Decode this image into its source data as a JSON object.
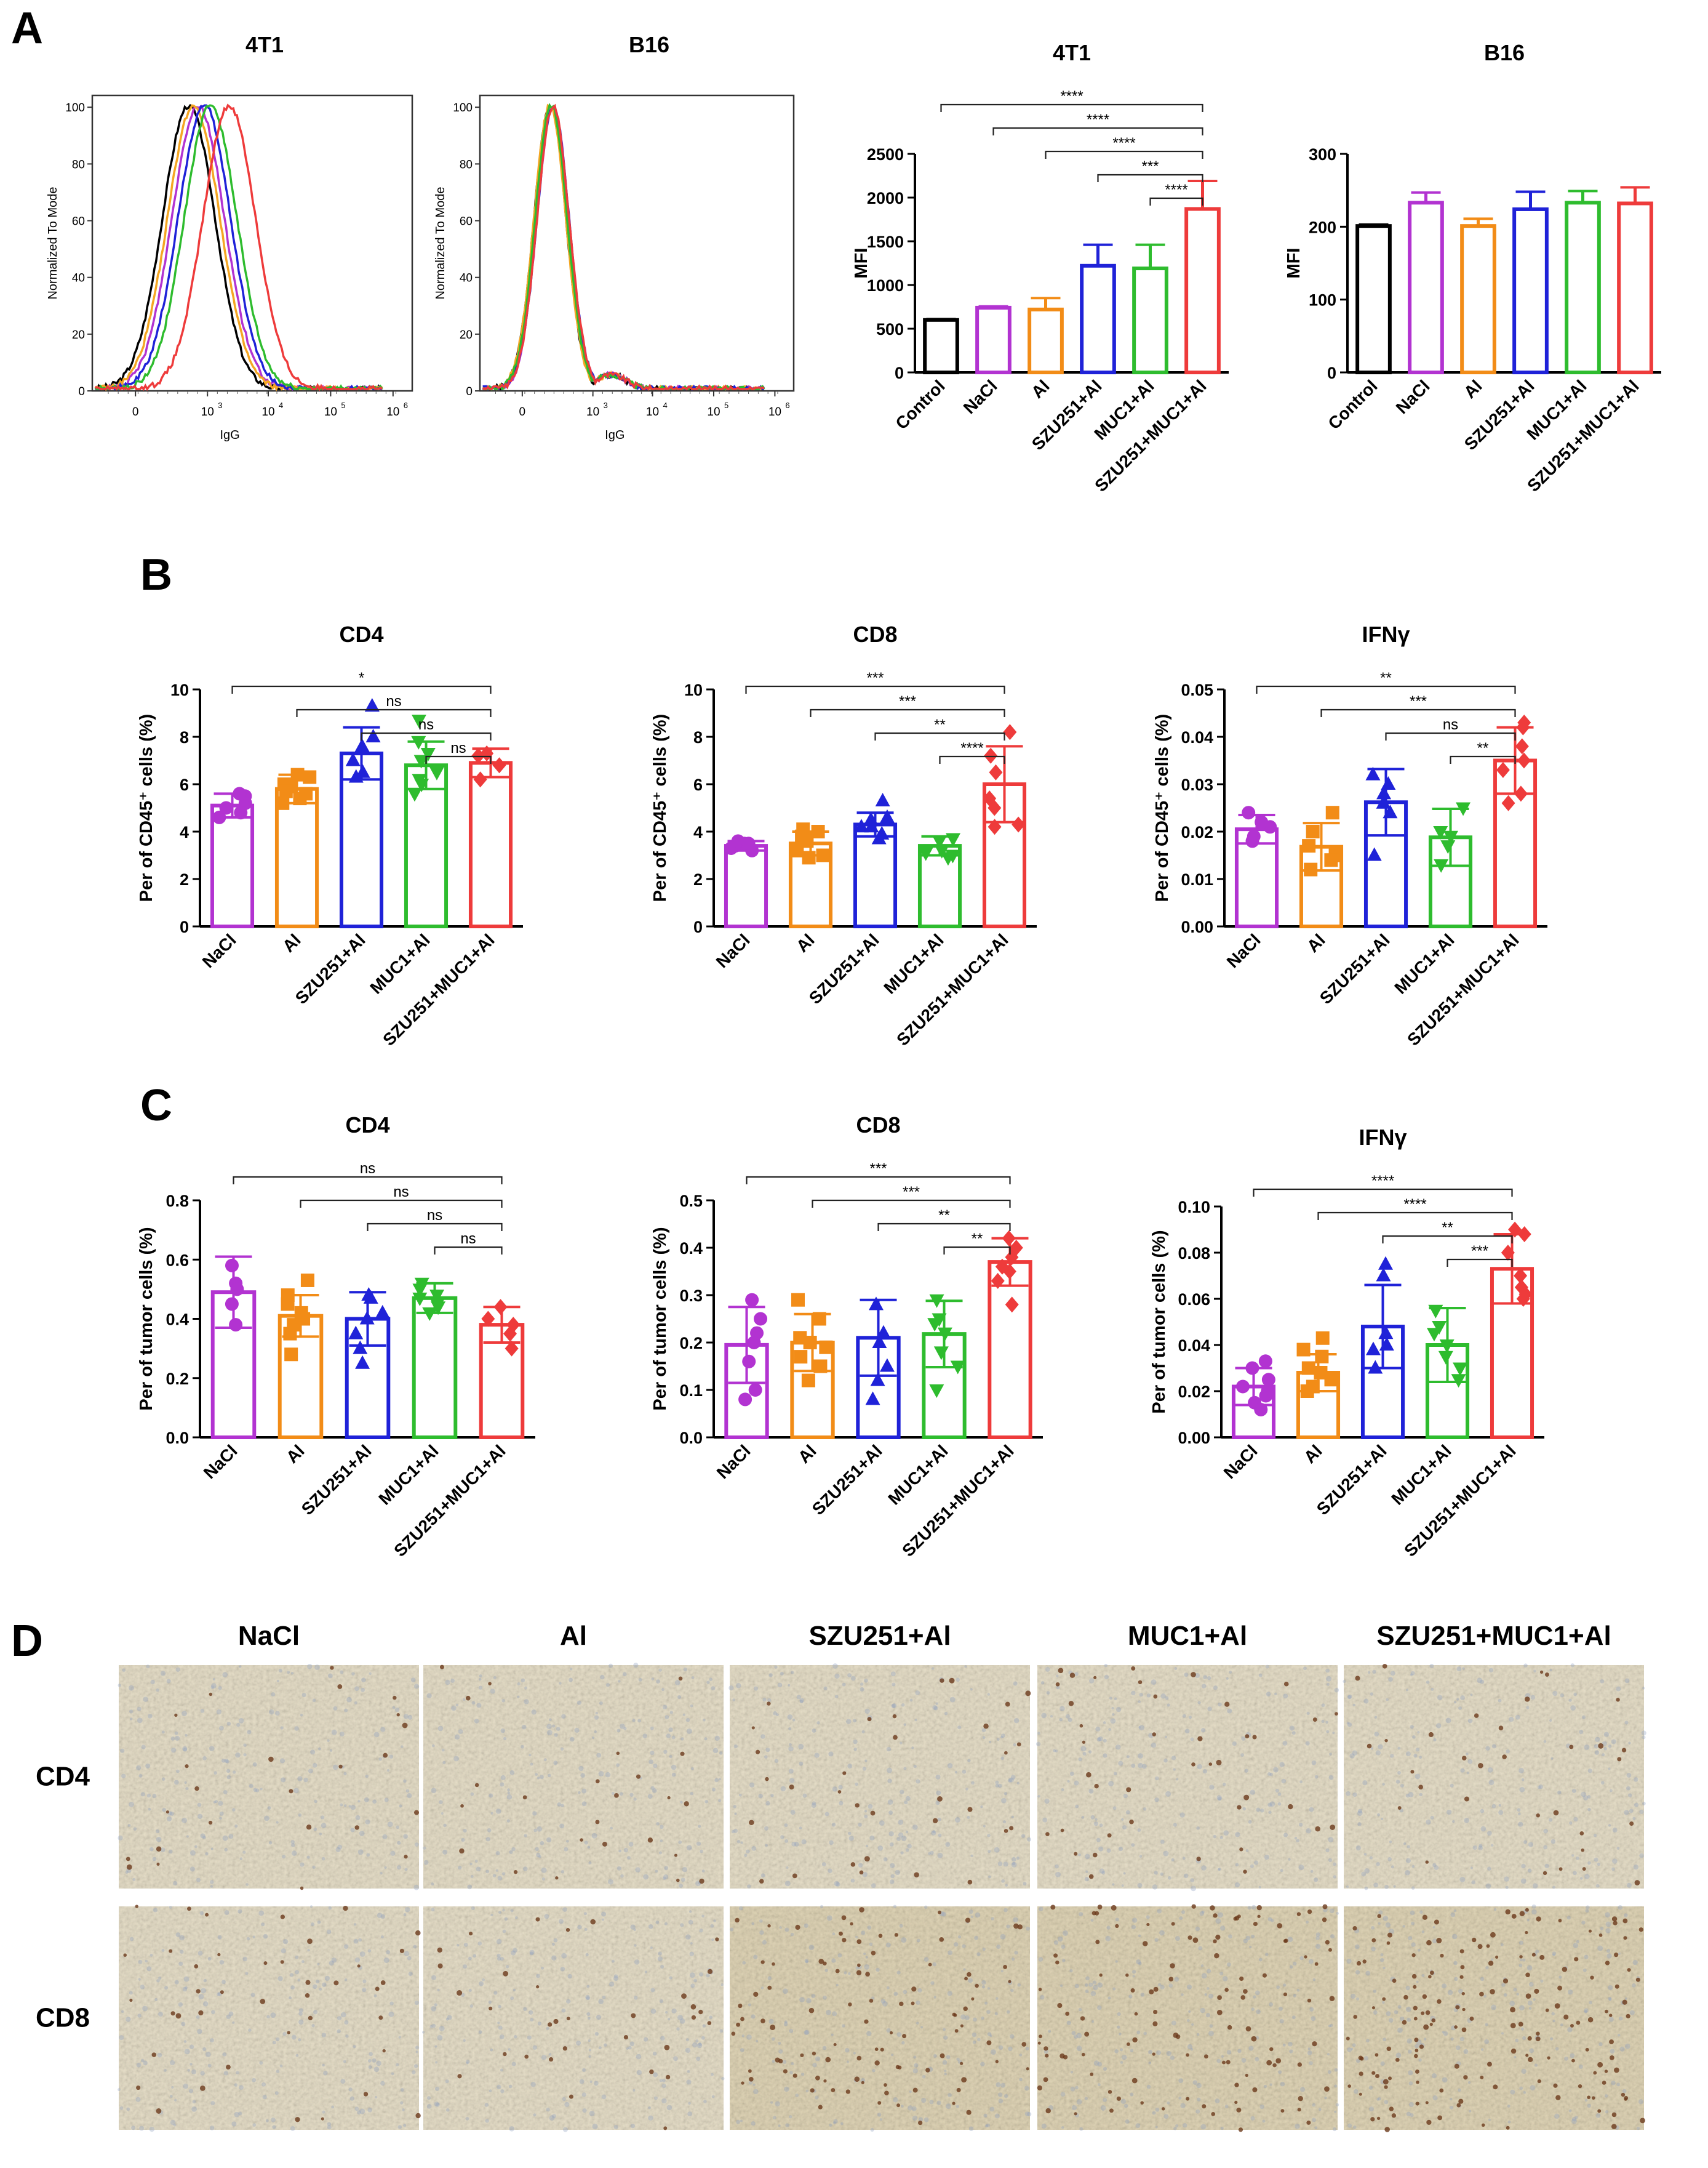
{
  "groups": {
    "control": "Control",
    "nacl": "NaCl",
    "al": "Al",
    "szu": "SZU251+Al",
    "muc": "MUC1+Al",
    "combo": "SZU251+MUC1+Al"
  },
  "colors": {
    "control": "#000000",
    "nacl": "#b233d1",
    "al": "#f28c17",
    "szu": "#1f22d8",
    "muc": "#2ebc2e",
    "combo": "#ee3b3b",
    "flow_orange": "#f5a623"
  },
  "panel_letters": [
    "A",
    "B",
    "C",
    "D"
  ],
  "chart_data": [
    {
      "id": "A-hist-4T1",
      "type": "line",
      "title": "4T1",
      "xlabel": "IgG",
      "ylabel": "Normalized To Mode",
      "x_scale": "biexponential",
      "x_ticks": [
        "0",
        "10",
        "10",
        "10",
        "10"
      ],
      "x_tick_exponents": [
        "",
        "3",
        "4",
        "5",
        "6"
      ],
      "y_ticks": [
        "0",
        "20",
        "40",
        "60",
        "80",
        "100"
      ],
      "ylim": [
        0,
        100
      ],
      "series": [
        {
          "name": "Control",
          "color_key": "control",
          "peak_log10": 2.7
        },
        {
          "name": "NaCl",
          "color_key": "nacl",
          "peak_log10": 2.85
        },
        {
          "name": "Al",
          "color_key": "flow_orange",
          "peak_log10": 2.78
        },
        {
          "name": "SZU251+Al",
          "color_key": "szu",
          "peak_log10": 2.95
        },
        {
          "name": "MUC1+Al",
          "color_key": "muc",
          "peak_log10": 3.05
        },
        {
          "name": "SZU251+MUC1+Al",
          "color_key": "combo",
          "peak_log10": 3.35
        }
      ]
    },
    {
      "id": "A-hist-B16",
      "type": "line",
      "title": "B16",
      "xlabel": "IgG",
      "ylabel": "Normalized To Mode",
      "x_scale": "biexponential",
      "x_ticks": [
        "0",
        "10",
        "10",
        "10",
        "10"
      ],
      "x_tick_exponents": [
        "",
        "3",
        "4",
        "5",
        "6"
      ],
      "y_ticks": [
        "0",
        "20",
        "40",
        "60",
        "80",
        "100"
      ],
      "ylim": [
        0,
        100
      ],
      "series": [
        {
          "name": "Control",
          "color_key": "control",
          "peak_log10": 2.3
        },
        {
          "name": "NaCl",
          "color_key": "nacl",
          "peak_log10": 2.35
        },
        {
          "name": "Al",
          "color_key": "flow_orange",
          "peak_log10": 2.3
        },
        {
          "name": "SZU251+Al",
          "color_key": "szu",
          "peak_log10": 2.35
        },
        {
          "name": "MUC1+Al",
          "color_key": "muc",
          "peak_log10": 2.32
        },
        {
          "name": "SZU251+MUC1+Al",
          "color_key": "combo",
          "peak_log10": 2.35
        }
      ]
    },
    {
      "id": "A-mfi-4T1",
      "type": "bar",
      "title": "4T1",
      "ylabel": "MFI",
      "ylim": [
        0,
        2500
      ],
      "y_ticks": [
        0,
        500,
        1000,
        1500,
        2000,
        2500
      ],
      "categories": [
        "control",
        "nacl",
        "al",
        "szu",
        "muc",
        "combo"
      ],
      "values": [
        600,
        740,
        720,
        1220,
        1190,
        1870
      ],
      "errors": [
        10,
        15,
        130,
        240,
        270,
        320
      ],
      "points": false,
      "significance": [
        {
          "from": 0,
          "to": 5,
          "label": "****"
        },
        {
          "from": 1,
          "to": 5,
          "label": "****"
        },
        {
          "from": 2,
          "to": 5,
          "label": "****"
        },
        {
          "from": 3,
          "to": 5,
          "label": "***"
        },
        {
          "from": 4,
          "to": 5,
          "label": "****"
        }
      ]
    },
    {
      "id": "A-mfi-B16",
      "type": "bar",
      "title": "B16",
      "ylabel": "MFI",
      "ylim": [
        0,
        300
      ],
      "y_ticks": [
        0,
        100,
        200,
        300
      ],
      "categories": [
        "control",
        "nacl",
        "al",
        "szu",
        "muc",
        "combo"
      ],
      "values": [
        201,
        233,
        201,
        224,
        233,
        232
      ],
      "errors": [
        2,
        14,
        10,
        24,
        16,
        22
      ],
      "points": false,
      "significance": []
    },
    {
      "id": "B-CD4",
      "type": "bar",
      "title": "CD4",
      "ylabel": "Per of CD45⁺ cells (%)",
      "ylim": [
        0,
        10
      ],
      "y_ticks": [
        "0",
        "2",
        "4",
        "6",
        "8",
        "10"
      ],
      "categories": [
        "nacl",
        "al",
        "szu",
        "muc",
        "combo"
      ],
      "values": [
        5.1,
        5.8,
        7.3,
        6.8,
        6.9
      ],
      "errors": [
        0.5,
        0.6,
        1.1,
        1.0,
        0.6
      ],
      "points": [
        [
          4.8,
          5.2,
          5.5,
          4.6,
          5.6,
          5.0
        ],
        [
          5.4,
          5.9,
          6.4,
          5.6,
          6.3,
          5.2,
          6.0,
          5.7
        ],
        [
          7.0,
          9.3,
          6.3,
          7.6,
          6.5,
          8.0
        ],
        [
          6.0,
          7.3,
          8.7,
          5.6,
          7.0,
          6.5,
          7.8,
          6.2
        ],
        [
          7.2,
          6.2,
          6.8,
          7.3
        ]
      ],
      "marker": [
        "circle",
        "square",
        "triangle",
        "tri-down",
        "diamond"
      ],
      "significance": [
        {
          "from": 0,
          "to": 4,
          "label": "*"
        },
        {
          "from": 1,
          "to": 4,
          "label": "ns"
        },
        {
          "from": 2,
          "to": 4,
          "label": "ns"
        },
        {
          "from": 3,
          "to": 4,
          "label": "ns"
        }
      ]
    },
    {
      "id": "B-CD8",
      "type": "bar",
      "title": "CD8",
      "ylabel": "Per of CD45⁺ cells (%)",
      "ylim": [
        0,
        10
      ],
      "y_ticks": [
        "0",
        "2",
        "4",
        "6",
        "8",
        "10"
      ],
      "categories": [
        "nacl",
        "al",
        "szu",
        "muc",
        "combo"
      ],
      "values": [
        3.4,
        3.5,
        4.3,
        3.4,
        6.0
      ],
      "errors": [
        0.2,
        0.5,
        0.5,
        0.4,
        1.6
      ],
      "points": [
        [
          3.3,
          3.5,
          3.4,
          3.6,
          3.2,
          3.5
        ],
        [
          3.0,
          3.8,
          4.0,
          2.9,
          3.6,
          3.2,
          4.1
        ],
        [
          3.7,
          4.6,
          5.3,
          4.2,
          3.9,
          4.5,
          4.2
        ],
        [
          3.0,
          3.6,
          3.1,
          3.7,
          3.2,
          2.9
        ],
        [
          4.2,
          5.4,
          8.2,
          7.2,
          6.5,
          5.0,
          4.3
        ]
      ],
      "marker": [
        "circle",
        "square",
        "triangle",
        "tri-down",
        "diamond"
      ],
      "significance": [
        {
          "from": 0,
          "to": 4,
          "label": "***"
        },
        {
          "from": 1,
          "to": 4,
          "label": "***"
        },
        {
          "from": 2,
          "to": 4,
          "label": "**"
        },
        {
          "from": 3,
          "to": 4,
          "label": "****"
        }
      ]
    },
    {
      "id": "B-IFNg",
      "type": "bar",
      "title": "IFNγ",
      "ylabel": "Per of CD45⁺ cells (%)",
      "ylim": [
        0,
        0.05
      ],
      "y_ticks": [
        "0.00",
        "0.01",
        "0.02",
        "0.03",
        "0.04",
        "0.05"
      ],
      "categories": [
        "nacl",
        "al",
        "szu",
        "muc",
        "combo"
      ],
      "values": [
        0.0205,
        0.0168,
        0.0262,
        0.0188,
        0.035
      ],
      "errors": [
        0.003,
        0.005,
        0.007,
        0.006,
        0.007
      ],
      "points": [
        [
          0.024,
          0.021,
          0.018,
          0.019,
          0.022
        ],
        [
          0.024,
          0.02,
          0.012,
          0.015,
          0.017,
          0.014
        ],
        [
          0.032,
          0.026,
          0.015,
          0.03,
          0.024,
          0.028
        ],
        [
          0.025,
          0.02,
          0.013,
          0.019,
          0.017
        ],
        [
          0.043,
          0.042,
          0.035,
          0.028,
          0.033,
          0.038,
          0.026
        ]
      ],
      "marker": [
        "circle",
        "square",
        "triangle",
        "tri-down",
        "diamond"
      ],
      "significance": [
        {
          "from": 0,
          "to": 4,
          "label": "**"
        },
        {
          "from": 1,
          "to": 4,
          "label": "***"
        },
        {
          "from": 2,
          "to": 4,
          "label": "ns"
        },
        {
          "from": 3,
          "to": 4,
          "label": "**"
        }
      ]
    },
    {
      "id": "C-CD4",
      "type": "bar",
      "title": "CD4",
      "ylabel": "Per of tumor cells (%)",
      "ylim": [
        0,
        0.8
      ],
      "y_ticks": [
        "0.0",
        "0.2",
        "0.4",
        "0.6",
        "0.8"
      ],
      "categories": [
        "nacl",
        "al",
        "szu",
        "muc",
        "combo"
      ],
      "values": [
        0.49,
        0.41,
        0.4,
        0.47,
        0.38
      ],
      "errors": [
        0.12,
        0.07,
        0.09,
        0.05,
        0.06
      ],
      "points": [
        [
          0.58,
          0.45,
          0.38,
          0.52,
          0.5
        ],
        [
          0.35,
          0.42,
          0.45,
          0.28,
          0.53,
          0.38,
          0.48,
          0.4
        ],
        [
          0.47,
          0.3,
          0.48,
          0.4,
          0.35,
          0.42,
          0.25
        ],
        [
          0.52,
          0.42,
          0.48,
          0.45,
          0.5,
          0.44,
          0.47
        ],
        [
          0.44,
          0.38,
          0.3,
          0.4,
          0.35
        ]
      ],
      "marker": [
        "circle",
        "square",
        "triangle",
        "tri-down",
        "diamond"
      ],
      "significance": [
        {
          "from": 0,
          "to": 4,
          "label": "ns"
        },
        {
          "from": 1,
          "to": 4,
          "label": "ns"
        },
        {
          "from": 2,
          "to": 4,
          "label": "ns"
        },
        {
          "from": 3,
          "to": 4,
          "label": "ns"
        }
      ]
    },
    {
      "id": "C-CD8",
      "type": "bar",
      "title": "CD8",
      "ylabel": "Per of tumor cells (%)",
      "ylim": [
        0,
        0.5
      ],
      "y_ticks": [
        "0.0",
        "0.1",
        "0.2",
        "0.3",
        "0.4",
        "0.5"
      ],
      "categories": [
        "nacl",
        "al",
        "szu",
        "muc",
        "combo"
      ],
      "values": [
        0.195,
        0.2,
        0.21,
        0.218,
        0.37
      ],
      "errors": [
        0.08,
        0.06,
        0.08,
        0.07,
        0.05
      ],
      "points": [
        [
          0.29,
          0.25,
          0.1,
          0.2,
          0.16,
          0.08,
          0.22
        ],
        [
          0.29,
          0.2,
          0.12,
          0.25,
          0.17,
          0.15,
          0.21,
          0.19
        ],
        [
          0.28,
          0.2,
          0.08,
          0.15,
          0.12,
          0.22
        ],
        [
          0.29,
          0.25,
          0.18,
          0.1,
          0.22,
          0.15,
          0.24
        ],
        [
          0.42,
          0.4,
          0.35,
          0.28,
          0.33,
          0.38,
          0.36
        ]
      ],
      "marker": [
        "circle",
        "square",
        "triangle",
        "tri-down",
        "diamond"
      ],
      "significance": [
        {
          "from": 0,
          "to": 4,
          "label": "***"
        },
        {
          "from": 1,
          "to": 4,
          "label": "***"
        },
        {
          "from": 2,
          "to": 4,
          "label": "**"
        },
        {
          "from": 3,
          "to": 4,
          "label": "**"
        }
      ]
    },
    {
      "id": "C-IFNg",
      "type": "bar",
      "title": "IFNγ",
      "ylabel": "Per of tumor cells (%)",
      "ylim": [
        0,
        0.1
      ],
      "y_ticks": [
        "0.00",
        "0.02",
        "0.04",
        "0.06",
        "0.08",
        "0.10"
      ],
      "categories": [
        "nacl",
        "al",
        "szu",
        "muc",
        "combo"
      ],
      "values": [
        0.022,
        0.028,
        0.048,
        0.04,
        0.073
      ],
      "errors": [
        0.008,
        0.008,
        0.018,
        0.016,
        0.015
      ],
      "points": [
        [
          0.033,
          0.03,
          0.025,
          0.018,
          0.015,
          0.012,
          0.022,
          0.02
        ],
        [
          0.043,
          0.038,
          0.03,
          0.02,
          0.025,
          0.028,
          0.035,
          0.022
        ],
        [
          0.075,
          0.07,
          0.045,
          0.04,
          0.03,
          0.038
        ],
        [
          0.055,
          0.048,
          0.04,
          0.035,
          0.025,
          0.03,
          0.045
        ],
        [
          0.09,
          0.088,
          0.08,
          0.065,
          0.06,
          0.07,
          0.062
        ]
      ],
      "marker": [
        "circle",
        "square",
        "triangle",
        "tri-down",
        "diamond"
      ],
      "significance": [
        {
          "from": 0,
          "to": 4,
          "label": "****"
        },
        {
          "from": 1,
          "to": 4,
          "label": "****"
        },
        {
          "from": 2,
          "to": 4,
          "label": "**"
        },
        {
          "from": 3,
          "to": 4,
          "label": "***"
        }
      ]
    }
  ],
  "ihc": {
    "columns": [
      "NaCl",
      "Al",
      "SZU251+Al",
      "MUC1+Al",
      "SZU251+MUC1+Al"
    ],
    "rows": [
      "CD4",
      "CD8"
    ],
    "stained_cell_density": [
      [
        0.15,
        0.15,
        0.2,
        0.25,
        0.2
      ],
      [
        0.25,
        0.2,
        0.6,
        0.7,
        1.0
      ]
    ]
  }
}
